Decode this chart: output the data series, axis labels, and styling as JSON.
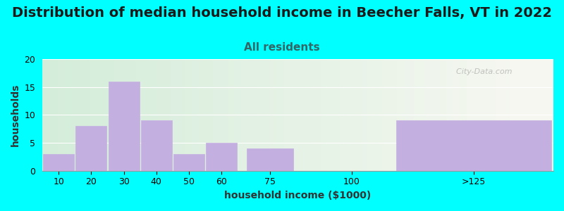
{
  "title": "Distribution of median household income in Beecher Falls, VT in 2022",
  "subtitle": "All residents",
  "xlabel": "household income ($1000)",
  "ylabel": "households",
  "bar_labels": [
    "10",
    "20",
    "30",
    "40",
    "50",
    "60",
    "75",
    "100",
    ">125"
  ],
  "bar_centers": [
    10,
    20,
    30,
    40,
    50,
    60,
    75,
    100,
    137.5
  ],
  "bar_widths": [
    10,
    10,
    10,
    10,
    10,
    10,
    15,
    25,
    50
  ],
  "bar_values": [
    3,
    8,
    16,
    9,
    3,
    5,
    4,
    0,
    9
  ],
  "bar_color": "#C4B0E0",
  "bar_edgecolor": "#C4B0E0",
  "ylim": [
    0,
    20
  ],
  "yticks": [
    0,
    5,
    10,
    15,
    20
  ],
  "xlim": [
    5,
    162
  ],
  "bg_color": "#00FFFF",
  "plot_bg_color_left": "#D4EDDA",
  "plot_bg_color_right": "#F5F5F0",
  "title_fontsize": 14,
  "subtitle_fontsize": 11,
  "subtitle_color": "#336666",
  "axis_label_fontsize": 10,
  "tick_fontsize": 9,
  "watermark": "  City-Data.com"
}
